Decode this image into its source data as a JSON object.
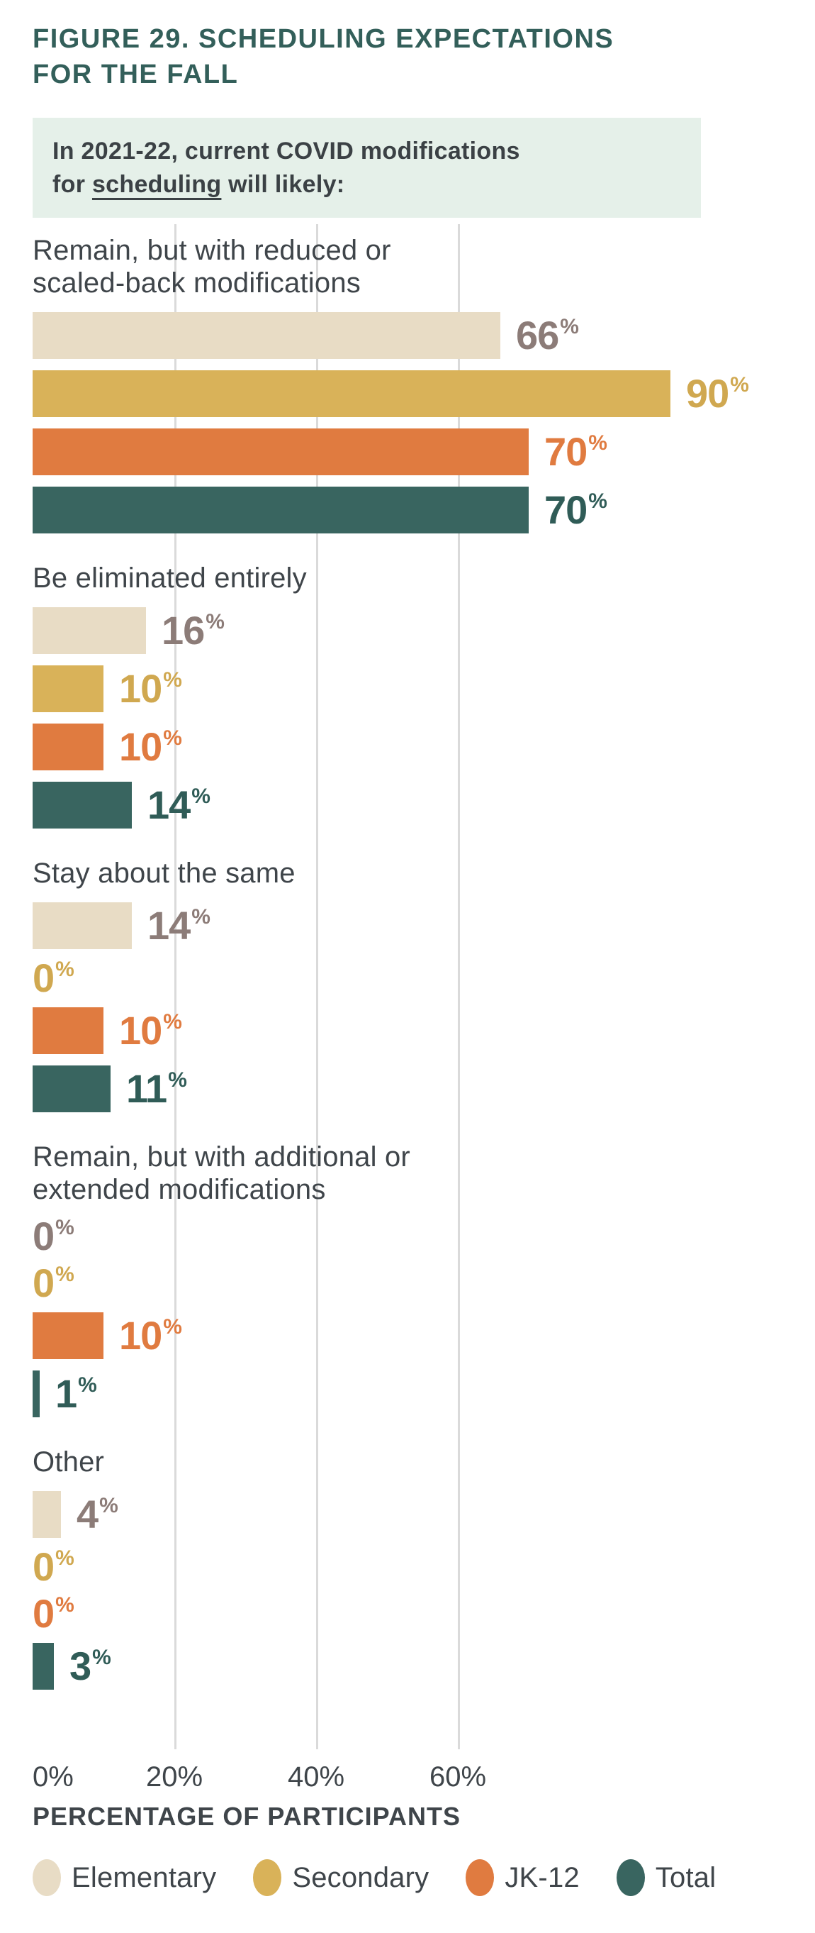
{
  "figure": {
    "title": [
      "FIGURE 29. SCHEDULING EXPECTATIONS",
      "FOR THE FALL"
    ],
    "question": {
      "line1": "In 2021-22, current COVID modifications",
      "line2_prefix": "for ",
      "line2_underlined": "scheduling",
      "line2_suffix": " will likely:"
    }
  },
  "chart_data": {
    "type": "bar",
    "orientation": "horizontal",
    "unit": "%",
    "title": "FIGURE 29. SCHEDULING EXPECTATIONS FOR THE FALL",
    "xlabel": "PERCENTAGE OF PARTICIPANTS",
    "xlim": [
      0,
      100
    ],
    "x_ticks": [
      {
        "label": "0%",
        "value": 0
      },
      {
        "label": "20%",
        "value": 20
      },
      {
        "label": "40%",
        "value": 40
      },
      {
        "label": "60%",
        "value": 60
      }
    ],
    "gridlines": "vertical at 20, 40, 60",
    "legend_position": "bottom",
    "series": [
      "Elementary",
      "Secondary",
      "JK-12",
      "Total"
    ],
    "categories": [
      "Remain, but with reduced or scaled-back modifications",
      "Be eliminated entirely",
      "Stay about the same",
      "Remain, but with additional or extended modifications",
      "Other"
    ],
    "groups": [
      {
        "label_lines": [
          "Remain, but with reduced or",
          "scaled-back modifications"
        ],
        "values": [
          66,
          90,
          70,
          70
        ]
      },
      {
        "label_lines": [
          "Be eliminated entirely"
        ],
        "values": [
          16,
          10,
          10,
          14
        ]
      },
      {
        "label_lines": [
          "Stay about the same"
        ],
        "values": [
          14,
          0,
          10,
          11
        ]
      },
      {
        "label_lines": [
          "Remain, but with additional or",
          "extended modifications"
        ],
        "values": [
          0,
          0,
          10,
          1
        ]
      },
      {
        "label_lines": [
          "Other"
        ],
        "values": [
          4,
          0,
          0,
          3
        ]
      }
    ]
  },
  "legend": [
    {
      "label": "Elementary",
      "color": "#e8dcc5"
    },
    {
      "label": "Secondary",
      "color": "#d9b259"
    },
    {
      "label": "JK-12",
      "color": "#e07b40"
    },
    {
      "label": "Total",
      "color": "#396560"
    }
  ],
  "colors": {
    "title_text": "#335f5a",
    "body_text": "#3f454a",
    "question_bg": "#e5f0e9",
    "gridline": "#dadada",
    "bar_colors": [
      "#e8dcc5",
      "#d9b259",
      "#e07b40",
      "#396560"
    ],
    "value_label_colors": [
      "#8c7c78",
      "#d0a850",
      "#e07b40",
      "#305c57"
    ]
  }
}
